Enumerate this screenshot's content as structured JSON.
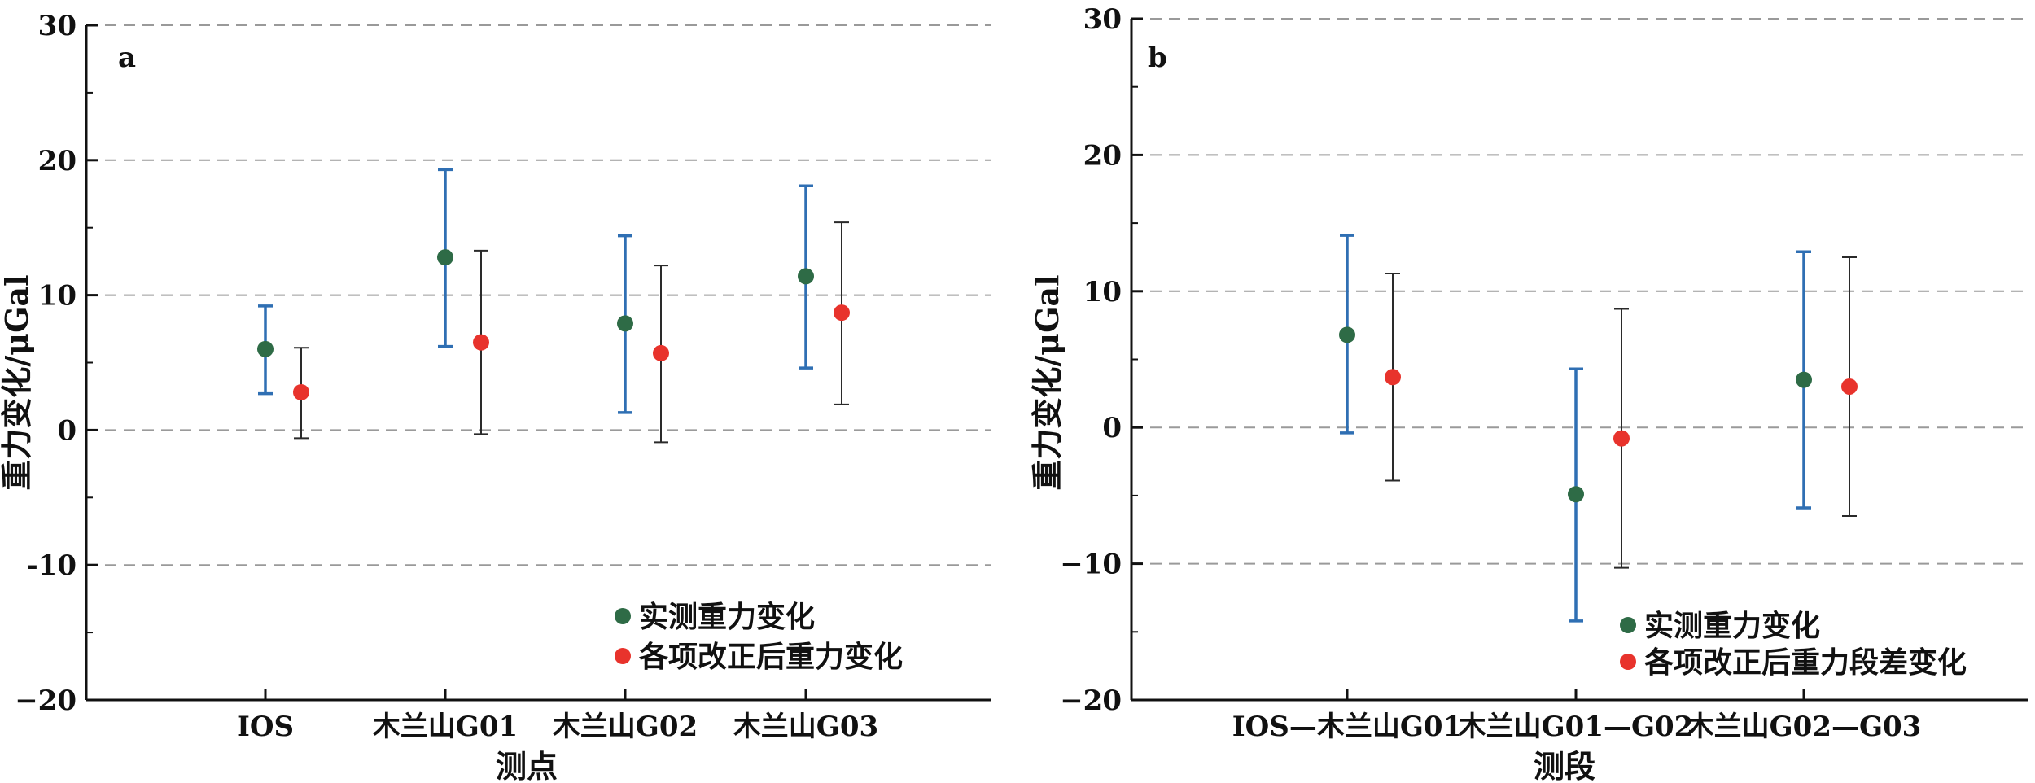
{
  "chart_data": [
    {
      "type": "scatter",
      "panel_label": "a",
      "xlabel": "测点",
      "ylabel": "重力变化/μGal",
      "categories": [
        "IOS",
        "木兰山G01",
        "木兰山G02",
        "木兰山G03"
      ],
      "ylim": [
        -20,
        30
      ],
      "yticks": [
        -20,
        -10,
        0,
        10,
        20,
        30
      ],
      "ytick_labels": [
        "−20",
        "-10",
        "0",
        "10",
        "20",
        "30"
      ],
      "grid": "dashed horizontal at major ticks",
      "legend_position": "bottom-right",
      "series": [
        {
          "name": "实测重力变化",
          "color": "#2e6b46",
          "error_color": "#2f6fb3",
          "values": [
            6.0,
            12.8,
            7.9,
            11.4
          ],
          "err_low": [
            2.7,
            6.2,
            1.3,
            4.6
          ],
          "err_high": [
            9.2,
            19.3,
            14.4,
            18.1
          ]
        },
        {
          "name": "各项改正后重力变化",
          "color": "#e8332c",
          "error_color": "#2a2a2a",
          "values": [
            2.8,
            6.5,
            5.7,
            8.7
          ],
          "err_low": [
            -0.6,
            -0.3,
            -0.9,
            1.9
          ],
          "err_high": [
            6.1,
            13.3,
            12.2,
            15.4
          ]
        }
      ]
    },
    {
      "type": "scatter",
      "panel_label": "b",
      "xlabel": "测段",
      "ylabel": "重力变化/μGal",
      "categories": [
        "IOS—木兰山G01",
        "木兰山G01—G02",
        "木兰山G02—G03"
      ],
      "ylim": [
        -20,
        30
      ],
      "yticks": [
        -20,
        -10,
        0,
        10,
        20,
        30
      ],
      "ytick_labels": [
        "−20",
        "−10",
        "0",
        "10",
        "20",
        "30"
      ],
      "grid": "dashed horizontal at major ticks",
      "legend_position": "bottom-right",
      "series": [
        {
          "name": "实测重力变化",
          "color": "#2e6b46",
          "error_color": "#2f6fb3",
          "values": [
            6.8,
            -4.9,
            3.5
          ],
          "err_low": [
            -0.4,
            -14.2,
            -5.9
          ],
          "err_high": [
            14.1,
            4.3,
            12.9
          ]
        },
        {
          "name": "各项改正后重力段差变化",
          "color": "#e8332c",
          "error_color": "#2a2a2a",
          "values": [
            3.7,
            -0.8,
            3.0
          ],
          "err_low": [
            -3.9,
            -10.3,
            -6.5
          ],
          "err_high": [
            11.3,
            8.7,
            12.5
          ]
        }
      ]
    }
  ]
}
